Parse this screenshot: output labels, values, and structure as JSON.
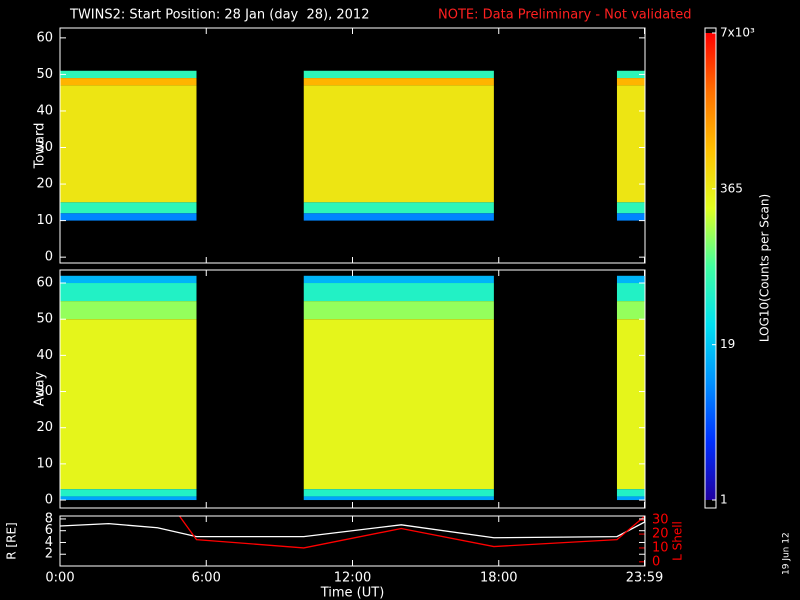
{
  "header": {
    "title": "TWINS2: Start Position: 28 Jan (day  28), 2012",
    "note": "NOTE: Data Preliminary - Not validated",
    "date_stamp": "19 Jun 12"
  },
  "colorbar": {
    "label": "LOG10(Counts per Scan)",
    "lim": [
      1,
      7000
    ],
    "scale": "log",
    "ticks": [
      1,
      19,
      365,
      {
        "value": 7000,
        "label": "7x10³"
      }
    ],
    "colors": [
      "#2000a0",
      "#0030ff",
      "#0090ff",
      "#00e0f0",
      "#40ffa0",
      "#e0ff20",
      "#ffc000",
      "#ff7000",
      "#ff0000"
    ]
  },
  "chart_data": [
    {
      "type": "heatmap",
      "ylabel": "Toward",
      "xlim": [
        0,
        24
      ],
      "ylim": [
        -1.6,
        62.7
      ],
      "yticks": [
        0,
        10,
        20,
        30,
        40,
        50,
        60
      ],
      "intervals": [
        [
          0,
          5.6
        ],
        [
          10,
          17.8
        ],
        [
          22.85,
          24
        ]
      ],
      "bands": [
        {
          "y": [
            49,
            51
          ],
          "value": 60
        },
        {
          "y": [
            47,
            49
          ],
          "value": 900
        },
        {
          "y": [
            15,
            47
          ],
          "value": 400
        },
        {
          "y": [
            12,
            15
          ],
          "value": 60
        },
        {
          "y": [
            10,
            12
          ],
          "value": 8
        }
      ]
    },
    {
      "type": "heatmap",
      "ylabel": "Away",
      "xlim": [
        0,
        24
      ],
      "ylim": [
        -2.2,
        63.6
      ],
      "yticks": [
        0,
        10,
        20,
        30,
        40,
        50,
        60
      ],
      "intervals": [
        [
          0,
          5.6
        ],
        [
          10,
          17.8
        ],
        [
          22.85,
          24
        ]
      ],
      "bands": [
        {
          "y": [
            60,
            62
          ],
          "value": 15
        },
        {
          "y": [
            55,
            60
          ],
          "value": 50
        },
        {
          "y": [
            50,
            55
          ],
          "value": 150
        },
        {
          "y": [
            3,
            50
          ],
          "value": 300
        },
        {
          "y": [
            1,
            3
          ],
          "value": 50
        },
        {
          "y": [
            0,
            1
          ],
          "value": 12
        }
      ]
    },
    {
      "type": "line",
      "xlabel": "Time (UT)",
      "xlim": [
        0,
        24
      ],
      "xticks": [
        {
          "value": 0,
          "label": "0:00"
        },
        {
          "value": 6,
          "label": "6:00"
        },
        {
          "value": 12,
          "label": "12:00"
        },
        {
          "value": 18,
          "label": "18:00"
        },
        {
          "value": 23.98,
          "label": "23:59"
        }
      ],
      "ylabel": "R [RE]",
      "ylim": [
        0,
        8.5
      ],
      "yticks": [
        2,
        4,
        6,
        8
      ],
      "y2label": "L Shell",
      "y2lim": [
        -3,
        33
      ],
      "y2ticks": [
        0,
        10,
        20,
        30
      ],
      "series": [
        {
          "color": "#ffffff",
          "x": [
            0,
            2,
            4,
            5.6,
            10,
            14,
            17.8,
            22.85,
            24
          ],
          "values": [
            6.8,
            7.2,
            6.5,
            5,
            5,
            7,
            4.8,
            5,
            7.5
          ]
        },
        {
          "color": "#ff0000",
          "axis": "y2",
          "x": [
            4.9,
            5.6,
            10,
            14,
            17.8,
            22.85,
            24
          ],
          "values": [
            33,
            16,
            10,
            24,
            11,
            16,
            33
          ]
        }
      ]
    }
  ]
}
